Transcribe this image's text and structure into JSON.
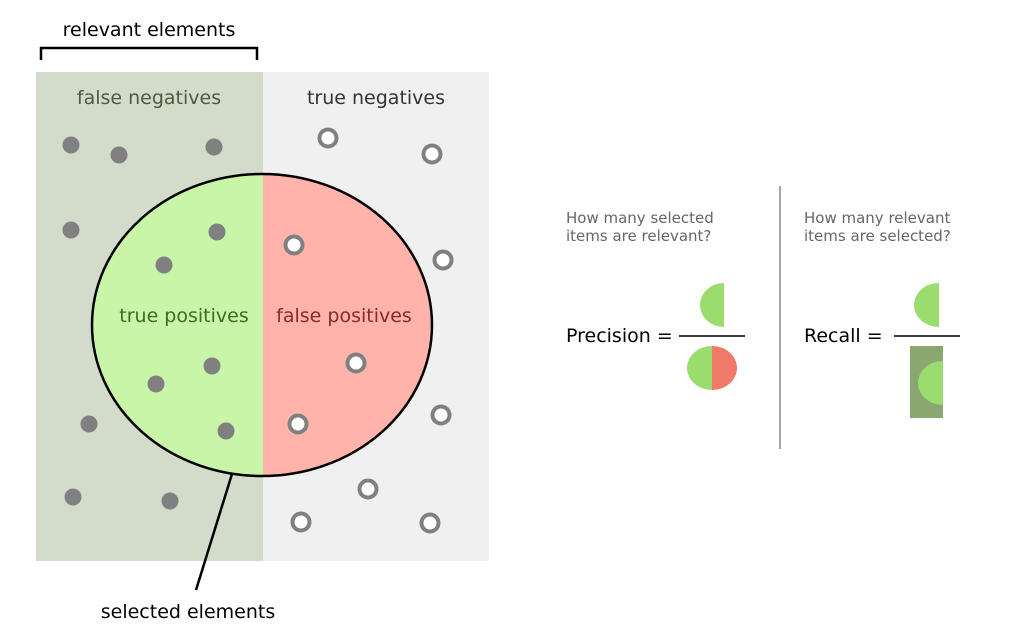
{
  "labels": {
    "relevant": "relevant elements",
    "selected": "selected elements",
    "false_negatives": "false negatives",
    "true_negatives": "true negatives",
    "true_positives": "true positives",
    "false_positives": "false positives"
  },
  "precision": {
    "question_line1": "How many selected",
    "question_line2": "items are relevant?",
    "label": "Precision ="
  },
  "recall": {
    "question_line1": "How many relevant",
    "question_line2": "items are selected?",
    "label": "Recall ="
  },
  "colors": {
    "relevant_region": "#d3dccb",
    "irrelevant_region": "#f0f0f0",
    "true_positive_fill": "#c9f5a9",
    "false_positive_fill": "#ffb3aa",
    "dot": "#808080",
    "fn_text": "#4c5a40",
    "tp_text": "#3e6b21",
    "fp_text": "#8b2a21",
    "formula_green": "#9bdc6f",
    "formula_red": "#f07a6a",
    "formula_dark_green": "#8aa771"
  }
}
